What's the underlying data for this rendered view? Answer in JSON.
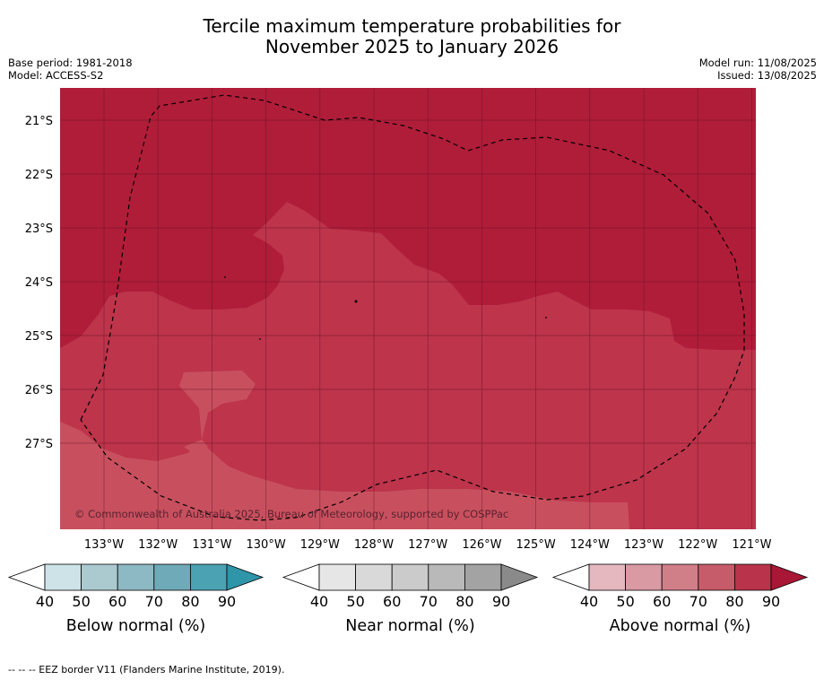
{
  "title": {
    "line1": "Tercile maximum temperature probabilities for",
    "line2": "November 2025 to January 2026"
  },
  "meta": {
    "base_period": "Base period: 1981-2018",
    "model": "Model: ACCESS-S2",
    "model_run": "Model run: 11/08/2025",
    "issued": "Issued: 13/08/2025"
  },
  "map": {
    "lat_labels": [
      "21°S",
      "22°S",
      "23°S",
      "24°S",
      "25°S",
      "26°S",
      "27°S"
    ],
    "lon_labels": [
      "133°W",
      "132°W",
      "131°W",
      "130°W",
      "129°W",
      "128°W",
      "127°W",
      "126°W",
      "125°W",
      "124°W",
      "123°W",
      "122°W",
      "121°W"
    ],
    "copyright": "© Commonwealth of Australia 2025, Bureau of Meteorology, supported by COSPPac",
    "colors": {
      "above_80": "#b01d39",
      "above_70": "#bd344b",
      "above_60": "#c8505e"
    }
  },
  "colorbars": [
    {
      "name": "below",
      "label": "Below normal (%)",
      "ticks": [
        "40",
        "50",
        "60",
        "70",
        "80",
        "90"
      ],
      "colors": [
        "#ffffff",
        "#cde3e8",
        "#abcad0",
        "#8db9c4",
        "#6eaab8",
        "#4ba2b2",
        "#2f95a9"
      ]
    },
    {
      "name": "near",
      "label": "Near normal (%)",
      "ticks": [
        "40",
        "50",
        "60",
        "70",
        "80",
        "90"
      ],
      "colors": [
        "#ffffff",
        "#e6e6e6",
        "#d9d9d9",
        "#cbcbcb",
        "#b9b9b9",
        "#a3a3a3",
        "#8a8a8a"
      ]
    },
    {
      "name": "above",
      "label": "Above normal (%)",
      "ticks": [
        "40",
        "50",
        "60",
        "70",
        "80",
        "90"
      ],
      "colors": [
        "#ffffff",
        "#e5b8c0",
        "#d99aa3",
        "#d07e88",
        "#c65c6a",
        "#b9344b",
        "#a81735"
      ]
    }
  ],
  "footer": "--  --  -- EEZ border V11 (Flanders Marine Institute, 2019)."
}
